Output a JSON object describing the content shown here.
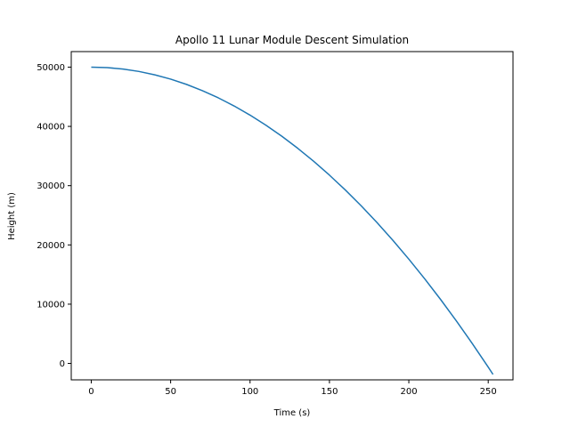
{
  "chart_data": {
    "type": "line",
    "title": "Apollo 11 Lunar Module Descent Simulation",
    "xlabel": "Time (s)",
    "ylabel": "Height (m)",
    "xlim": [
      -12.6,
      265.6
    ],
    "ylim": [
      -2770,
      52620
    ],
    "xticks": [
      0,
      50,
      100,
      150,
      200,
      250
    ],
    "xtick_labels": [
      "0",
      "50",
      "100",
      "150",
      "200",
      "250"
    ],
    "yticks": [
      0,
      10000,
      20000,
      30000,
      40000,
      50000
    ],
    "ytick_labels": [
      "0",
      "10000",
      "20000",
      "30000",
      "40000",
      "50000"
    ],
    "grid": false,
    "series": [
      {
        "color": "#1f77b4",
        "x": [
          0,
          10,
          20,
          30,
          40,
          50,
          60,
          70,
          80,
          90,
          100,
          110,
          120,
          130,
          140,
          150,
          160,
          170,
          180,
          190,
          200,
          210,
          220,
          230,
          240,
          250,
          253
        ],
        "values": [
          50000,
          49919,
          49676,
          49271,
          48704,
          47975,
          47084,
          46031,
          44816,
          43439,
          41900,
          40199,
          38336,
          36311,
          34124,
          31775,
          29264,
          26591,
          23756,
          20759,
          17600,
          14279,
          10796,
          7151,
          3344,
          -625,
          -1850
        ]
      }
    ]
  }
}
